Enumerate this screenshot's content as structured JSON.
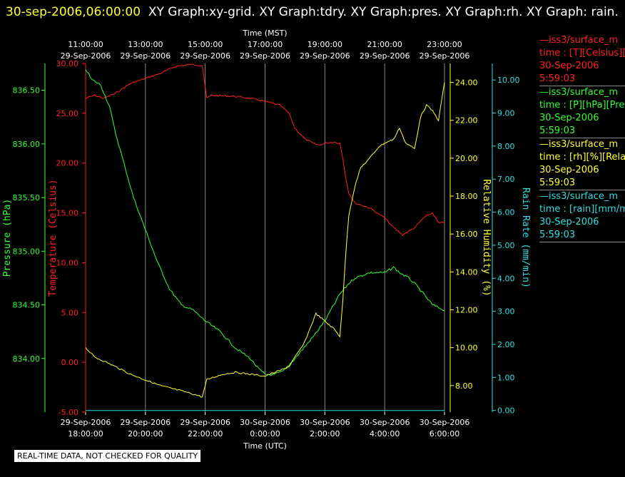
{
  "header": {
    "timestamp": "30-sep-2006,06:00:00",
    "title_rest": "XY Graph:xy-grid.  XY Graph:tdry.  XY Graph:pres.  XY Graph:rh.  XY Graph: rain."
  },
  "disclaimer": "REAL-TIME DATA, NOT CHECKED FOR QUALITY",
  "colors": {
    "temperature": "#ff2020",
    "pressure": "#33ff33",
    "humidity": "#ffff33",
    "rain": "#33dddd",
    "grid": "#888888"
  },
  "legend": [
    {
      "line1": "—iss3/surface_m",
      "line2": "time : [T][Celsius][T",
      "line3": "30-Sep-2006",
      "line4": "5:59:03",
      "color": "#ff2020"
    },
    {
      "line1": "—iss3/surface_m",
      "line2": "time : [P][hPa][Pres",
      "line3": "30-Sep-2006",
      "line4": "5:59:03",
      "color": "#33ff33"
    },
    {
      "line1": "—iss3/surface_m",
      "line2": "time : [rh][%][Relati",
      "line3": "30-Sep-2006",
      "line4": "5:59:03",
      "color": "#ffff33"
    },
    {
      "line1": "—iss3/surface_m",
      "line2": "time : [rain][mm/mi",
      "line3": "30-Sep-2006",
      "line4": "5:59:03",
      "color": "#33dddd"
    }
  ],
  "chart_data": {
    "type": "line",
    "top_axis": {
      "label": "Time (MST)",
      "ticks": [
        {
          "time": "11:00:00",
          "date": "29-Sep-2006"
        },
        {
          "time": "13:00:00",
          "date": "29-Sep-2006"
        },
        {
          "time": "15:00:00",
          "date": "29-Sep-2006"
        },
        {
          "time": "17:00:00",
          "date": "29-Sep-2006"
        },
        {
          "time": "19:00:00",
          "date": "29-Sep-2006"
        },
        {
          "time": "21:00:00",
          "date": "29-Sep-2006"
        },
        {
          "time": "23:00:00",
          "date": "29-Sep-2006"
        }
      ]
    },
    "bottom_axis": {
      "label": "Time (UTC)",
      "ticks": [
        {
          "date": "29-Sep-2006",
          "time": "18:00:00"
        },
        {
          "date": "29-Sep-2006",
          "time": "20:00:00"
        },
        {
          "date": "29-Sep-2006",
          "time": "22:00:00"
        },
        {
          "date": "30-Sep-2006",
          "time": "0:00:00"
        },
        {
          "date": "30-Sep-2006",
          "time": "2:00:00"
        },
        {
          "date": "30-Sep-2006",
          "time": "4:00:00"
        },
        {
          "date": "30-Sep-2006",
          "time": "6:00:00"
        }
      ],
      "x_range_hours_utc": [
        18,
        30
      ]
    },
    "axes": {
      "pressure": {
        "label": "Pressure (hPa)",
        "range": [
          833.5,
          836.75
        ],
        "ticks": [
          "834.00",
          "834.50",
          "835.00",
          "835.50",
          "836.00",
          "836.50"
        ]
      },
      "temperature": {
        "label": "Temperature (Celsius)",
        "range": [
          -5,
          30
        ],
        "ticks": [
          "-5.00",
          "0.00",
          "5.00",
          "10.00",
          "15.00",
          "20.00",
          "25.00",
          "30.00"
        ]
      },
      "humidity": {
        "label": "Relative Humidity (%)",
        "range": [
          6.6,
          25
        ],
        "ticks": [
          "8.00",
          "10.00",
          "12.00",
          "14.00",
          "16.00",
          "18.00",
          "20.00",
          "22.00",
          "24.00"
        ]
      },
      "rain": {
        "label": "Rain Rate (mm/min)",
        "range": [
          -0.05,
          10.5
        ],
        "ticks": [
          "0.00",
          "1.00",
          "2.00",
          "3.00",
          "4.00",
          "5.00",
          "6.00",
          "7.00",
          "8.00",
          "9.00",
          "10.00"
        ]
      }
    },
    "series": [
      {
        "name": "Temperature",
        "axis": "temperature",
        "color": "#ff2020",
        "x": [
          18.0,
          18.3,
          18.6,
          19.0,
          19.5,
          20.0,
          20.5,
          21.0,
          21.5,
          21.9,
          22.05,
          22.2,
          23.0,
          23.5,
          24.0,
          24.5,
          24.8,
          25.0,
          25.3,
          25.6,
          25.8,
          26.0,
          26.3,
          26.5,
          26.6,
          26.7,
          26.8,
          27.0,
          27.5,
          28.0,
          28.3,
          28.6,
          29.0,
          29.3,
          29.6,
          29.8,
          30.0
        ],
        "y": [
          26.5,
          26.8,
          26.5,
          27.0,
          28.0,
          28.5,
          29.0,
          29.7,
          29.9,
          29.8,
          26.5,
          26.8,
          26.7,
          26.5,
          26.2,
          25.8,
          25.0,
          23.5,
          22.5,
          22.0,
          21.8,
          22.0,
          22.1,
          22.0,
          20.5,
          18.5,
          17.0,
          16.0,
          15.5,
          14.5,
          13.5,
          12.8,
          13.5,
          14.5,
          15.0,
          14.0,
          14.0
        ]
      },
      {
        "name": "Pressure",
        "axis": "pressure",
        "color": "#33ff33",
        "x": [
          18.0,
          18.2,
          18.5,
          18.8,
          19.0,
          19.3,
          19.6,
          20.0,
          20.4,
          20.8,
          21.2,
          21.6,
          22.0,
          22.5,
          23.0,
          23.5,
          23.8,
          24.0,
          24.3,
          24.6,
          25.0,
          25.3,
          25.6,
          26.0,
          26.3,
          26.5,
          26.8,
          27.0,
          27.5,
          28.0,
          28.3,
          28.5,
          28.8,
          29.0,
          29.3,
          29.6,
          30.0
        ],
        "y": [
          836.7,
          836.6,
          836.55,
          836.35,
          836.1,
          835.8,
          835.5,
          835.2,
          834.9,
          834.65,
          834.5,
          834.45,
          834.35,
          834.25,
          834.1,
          834.0,
          833.9,
          833.85,
          833.85,
          833.88,
          834.0,
          834.1,
          834.2,
          834.35,
          834.5,
          834.6,
          834.7,
          834.75,
          834.8,
          834.8,
          834.85,
          834.8,
          834.75,
          834.7,
          834.6,
          834.5,
          834.45
        ]
      },
      {
        "name": "Relative Humidity",
        "axis": "humidity",
        "color": "#ffff33",
        "x": [
          18.0,
          18.3,
          18.6,
          19.0,
          19.5,
          20.0,
          20.5,
          21.0,
          21.5,
          21.9,
          22.05,
          22.2,
          22.6,
          23.0,
          23.5,
          24.0,
          24.5,
          24.8,
          25.0,
          25.3,
          25.5,
          25.7,
          26.0,
          26.3,
          26.5,
          26.6,
          26.7,
          26.8,
          27.0,
          27.2,
          27.5,
          27.8,
          28.0,
          28.3,
          28.5,
          28.7,
          29.0,
          29.2,
          29.4,
          29.6,
          29.8,
          30.0
        ],
        "y": [
          10.0,
          9.5,
          9.3,
          9.0,
          8.6,
          8.3,
          8.0,
          7.8,
          7.6,
          7.4,
          8.3,
          8.4,
          8.6,
          8.7,
          8.6,
          8.5,
          8.8,
          9.0,
          9.5,
          10.2,
          11.0,
          11.8,
          11.4,
          11.0,
          10.6,
          12.5,
          15.0,
          17.0,
          18.5,
          19.5,
          20.0,
          20.6,
          20.8,
          21.0,
          21.6,
          20.8,
          20.5,
          22.2,
          22.8,
          22.5,
          22.0,
          24.0
        ]
      },
      {
        "name": "Rain Rate",
        "axis": "rain",
        "color": "#33dddd",
        "x": [
          18.0,
          30.0
        ],
        "y": [
          0.0,
          0.0
        ]
      }
    ]
  }
}
